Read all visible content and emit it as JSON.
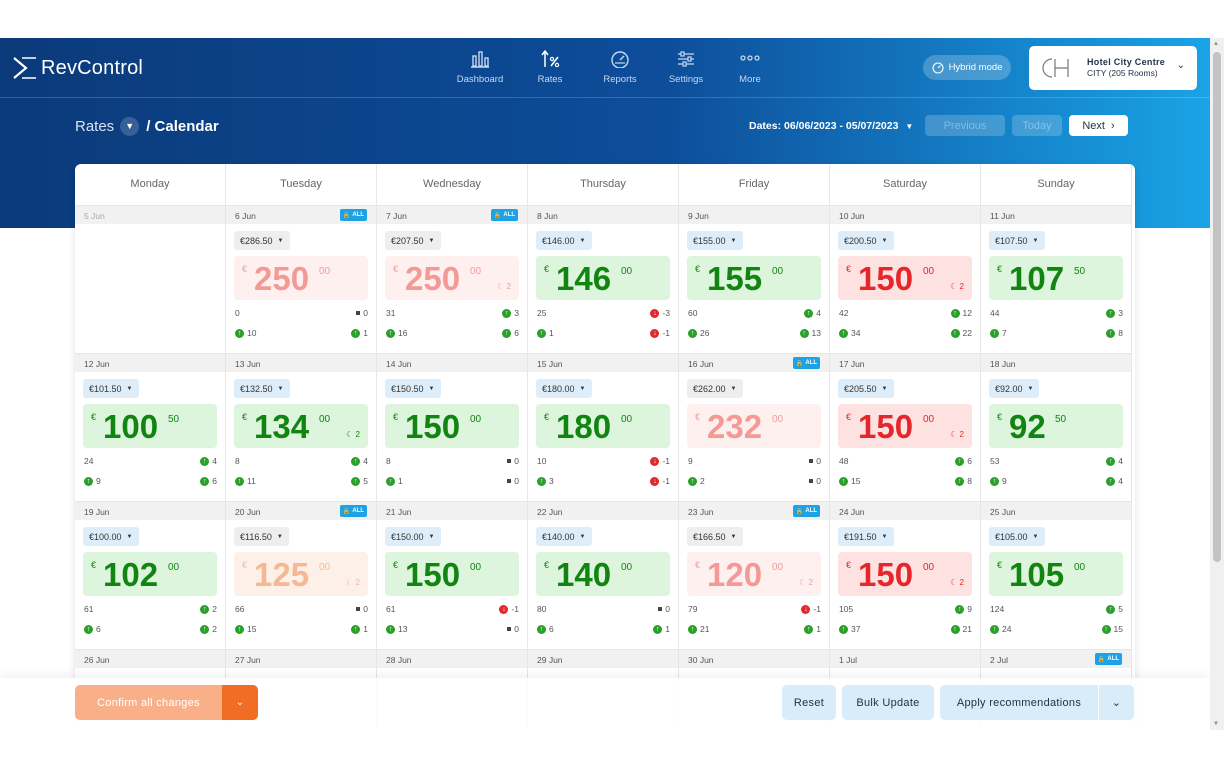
{
  "app": {
    "name": "RevControl"
  },
  "nav": {
    "items": [
      {
        "label": "Dashboard",
        "icon": "bar-chart-icon"
      },
      {
        "label": "Rates",
        "icon": "percent-icon"
      },
      {
        "label": "Reports",
        "icon": "gauge-icon"
      },
      {
        "label": "Settings",
        "icon": "sliders-icon"
      },
      {
        "label": "More",
        "icon": "more-dots-icon"
      }
    ],
    "active": "Rates"
  },
  "hybrid_mode": {
    "label": "Hybrid mode"
  },
  "hotel": {
    "name": "Hotel City Centre",
    "detail": "CITY (205 Rooms)"
  },
  "breadcrumb": {
    "root": "Rates",
    "current": "/ Calendar"
  },
  "date_range": {
    "label": "Dates: 06/06/2023 - 05/07/2023"
  },
  "pager": {
    "previous": "Previous",
    "today": "Today",
    "next": "Next"
  },
  "lock_label": "ALL",
  "weekdays": [
    "Monday",
    "Tuesday",
    "Wednesday",
    "Thursday",
    "Friday",
    "Saturday",
    "Sunday"
  ],
  "weeks": [
    [
      {
        "date": "5 Jun",
        "past": true
      },
      {
        "date": "6 Jun",
        "lock": true,
        "rec": "€286.50",
        "pill": "gray",
        "int": "250",
        "dec": "00",
        "tone": "lpink",
        "moon": "",
        "a": "0",
        "at": "sq",
        "av": "0",
        "b": "10",
        "bv": "1",
        "bt": "up"
      },
      {
        "date": "7 Jun",
        "lock": true,
        "rec": "€207.50",
        "pill": "gray",
        "int": "250",
        "dec": "00",
        "tone": "lpink",
        "moon": "2",
        "a": "31",
        "at": "up",
        "av": "3",
        "b": "16",
        "bv": "6",
        "bt": "up"
      },
      {
        "date": "8 Jun",
        "rec": "€146.00",
        "pill": "blue",
        "int": "146",
        "dec": "00",
        "tone": "green",
        "moon": "",
        "a": "25",
        "at": "dn",
        "av": "-3",
        "b": "1",
        "bv": "-1",
        "bt": "dn"
      },
      {
        "date": "9 Jun",
        "rec": "€155.00",
        "pill": "blue",
        "int": "155",
        "dec": "00",
        "tone": "green",
        "moon": "",
        "a": "60",
        "at": "up",
        "av": "4",
        "b": "26",
        "bv": "13",
        "bt": "up"
      },
      {
        "date": "10 Jun",
        "rec": "€200.50",
        "pill": "blue",
        "int": "150",
        "dec": "00",
        "tone": "pink",
        "moon": "2",
        "a": "42",
        "at": "up",
        "av": "12",
        "b": "34",
        "bv": "22",
        "bt": "up"
      },
      {
        "date": "11 Jun",
        "rec": "€107.50",
        "pill": "blue",
        "int": "107",
        "dec": "50",
        "tone": "green",
        "moon": "",
        "a": "44",
        "at": "up",
        "av": "3",
        "b": "7",
        "bv": "8",
        "bt": "up"
      }
    ],
    [
      {
        "date": "12 Jun",
        "rec": "€101.50",
        "pill": "blue",
        "int": "100",
        "dec": "50",
        "tone": "green",
        "moon": "",
        "a": "24",
        "at": "up",
        "av": "4",
        "b": "9",
        "bv": "6",
        "bt": "up"
      },
      {
        "date": "13 Jun",
        "rec": "€132.50",
        "pill": "blue",
        "int": "134",
        "dec": "00",
        "tone": "green",
        "moon": "2",
        "a": "8",
        "at": "up",
        "av": "4",
        "b": "11",
        "bv": "5",
        "bt": "up"
      },
      {
        "date": "14 Jun",
        "rec": "€150.50",
        "pill": "blue",
        "int": "150",
        "dec": "00",
        "tone": "green",
        "moon": "",
        "a": "8",
        "at": "sq",
        "av": "0",
        "b": "1",
        "bv": "0",
        "bt": "sq"
      },
      {
        "date": "15 Jun",
        "rec": "€180.00",
        "pill": "blue",
        "int": "180",
        "dec": "00",
        "tone": "green",
        "moon": "",
        "a": "10",
        "at": "dn",
        "av": "-1",
        "b": "3",
        "bv": "-1",
        "bt": "dn"
      },
      {
        "date": "16 Jun",
        "lock": true,
        "rec": "€262.00",
        "pill": "gray",
        "int": "232",
        "dec": "00",
        "tone": "lpink",
        "moon": "",
        "a": "9",
        "at": "sq",
        "av": "0",
        "b": "2",
        "bv": "0",
        "bt": "sq"
      },
      {
        "date": "17 Jun",
        "rec": "€205.50",
        "pill": "blue",
        "int": "150",
        "dec": "00",
        "tone": "pink",
        "moon": "2",
        "a": "48",
        "at": "up",
        "av": "6",
        "b": "15",
        "bv": "8",
        "bt": "up"
      },
      {
        "date": "18 Jun",
        "rec": "€92.00",
        "pill": "blue",
        "int": "92",
        "dec": "50",
        "tone": "green",
        "moon": "",
        "a": "53",
        "at": "up",
        "av": "4",
        "b": "9",
        "bv": "4",
        "bt": "up"
      }
    ],
    [
      {
        "date": "19 Jun",
        "rec": "€100.00",
        "pill": "blue",
        "int": "102",
        "dec": "00",
        "tone": "green",
        "moon": "",
        "a": "61",
        "at": "up",
        "av": "2",
        "b": "6",
        "bv": "2",
        "bt": "up"
      },
      {
        "date": "20 Jun",
        "lock": true,
        "rec": "€116.50",
        "pill": "gray",
        "int": "125",
        "dec": "00",
        "tone": "peach",
        "moon": "2",
        "a": "66",
        "at": "sq",
        "av": "0",
        "b": "15",
        "bv": "1",
        "bt": "up"
      },
      {
        "date": "21 Jun",
        "rec": "€150.00",
        "pill": "blue",
        "int": "150",
        "dec": "00",
        "tone": "green",
        "moon": "",
        "a": "61",
        "at": "dn",
        "av": "-1",
        "b": "13",
        "bv": "0",
        "bt": "sq"
      },
      {
        "date": "22 Jun",
        "rec": "€140.00",
        "pill": "blue",
        "int": "140",
        "dec": "00",
        "tone": "green",
        "moon": "",
        "a": "80",
        "at": "sq",
        "av": "0",
        "b": "6",
        "bv": "1",
        "bt": "up"
      },
      {
        "date": "23 Jun",
        "lock": true,
        "rec": "€166.50",
        "pill": "gray",
        "int": "120",
        "dec": "00",
        "tone": "lpink",
        "moon": "2",
        "a": "79",
        "at": "dn",
        "av": "-1",
        "b": "21",
        "bv": "1",
        "bt": "up"
      },
      {
        "date": "24 Jun",
        "rec": "€191.50",
        "pill": "blue",
        "int": "150",
        "dec": "00",
        "tone": "pink",
        "moon": "2",
        "a": "105",
        "at": "up",
        "av": "9",
        "b": "37",
        "bv": "21",
        "bt": "up"
      },
      {
        "date": "25 Jun",
        "rec": "€105.00",
        "pill": "blue",
        "int": "105",
        "dec": "00",
        "tone": "green",
        "moon": "",
        "a": "124",
        "at": "up",
        "av": "5",
        "b": "24",
        "bv": "15",
        "bt": "up"
      }
    ],
    [
      {
        "date": "26 Jun"
      },
      {
        "date": "27 Jun"
      },
      {
        "date": "28 Jun"
      },
      {
        "date": "29 Jun"
      },
      {
        "date": "30 Jun"
      },
      {
        "date": "1 Jul"
      },
      {
        "date": "2 Jul",
        "lock": true
      }
    ]
  ],
  "footer": {
    "confirm": "Confirm all changes",
    "reset": "Reset",
    "bulk_update": "Bulk Update",
    "apply": "Apply recommendations"
  },
  "colors": {
    "accent": "#f06d23",
    "brand": "#0b3a7a",
    "up": "#2aa02a",
    "down": "#e5262b"
  }
}
